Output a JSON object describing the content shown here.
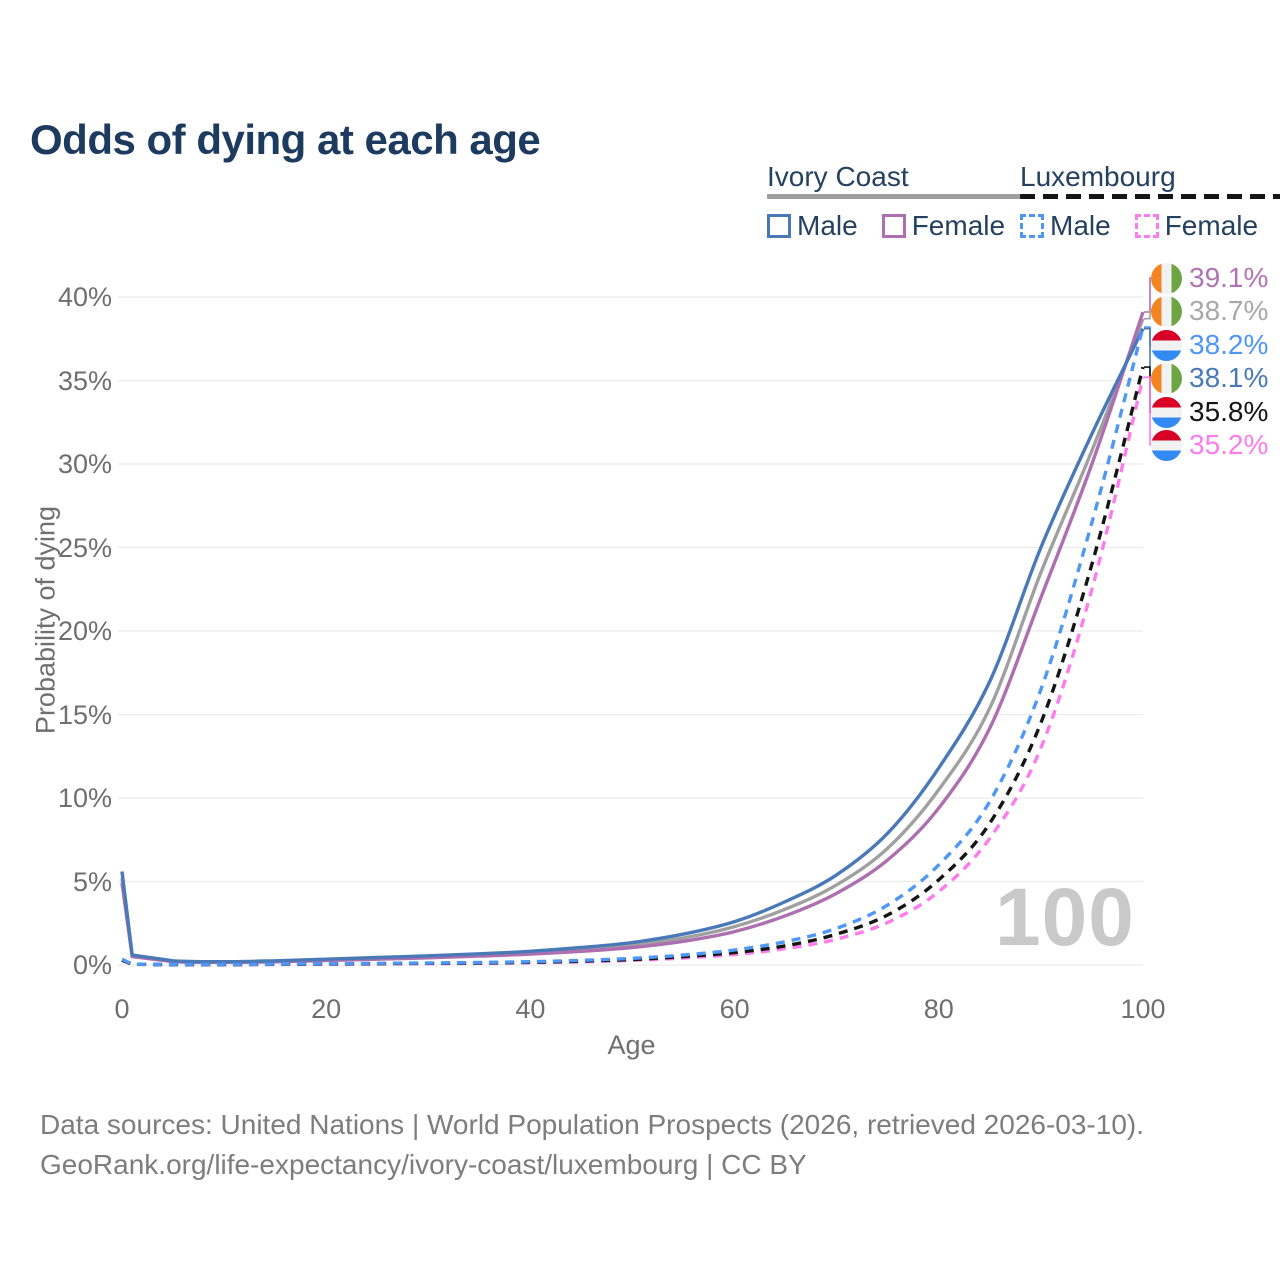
{
  "title": "Odds of dying at each age",
  "watermark": "100",
  "legend": {
    "groups": [
      {
        "label": "Ivory Coast",
        "underline_style": "solid",
        "underline_color": "#9e9e9e",
        "items": [
          {
            "label": "Male",
            "color": "#4a79b8",
            "dashed": false
          },
          {
            "label": "Female",
            "color": "#ad6fb0",
            "dashed": false
          }
        ]
      },
      {
        "label": "Luxembourg",
        "underline_style": "dashed",
        "underline_color": "#151515",
        "items": [
          {
            "label": "Male",
            "color": "#4e97f5",
            "dashed": true
          },
          {
            "label": "Female",
            "color": "#fd7ced",
            "dashed": true
          }
        ]
      }
    ]
  },
  "axes": {
    "y": {
      "title": "Probability of dying",
      "tick_values": [
        0,
        5,
        10,
        15,
        20,
        25,
        30,
        35,
        40
      ],
      "tick_labels": [
        "0%",
        "5%",
        "10%",
        "15%",
        "20%",
        "25%",
        "30%",
        "35%",
        "40%"
      ],
      "min": 0,
      "max": 40,
      "grid": true
    },
    "x": {
      "title": "Age",
      "tick_values": [
        0,
        20,
        40,
        60,
        80,
        100
      ],
      "tick_labels": [
        "0",
        "20",
        "40",
        "60",
        "80",
        "100"
      ],
      "min": 0,
      "max": 100
    }
  },
  "end_labels": [
    {
      "value": "39.1%",
      "flag": "ivory-coast",
      "color": "#b173b1",
      "series": "Ivory Coast Female"
    },
    {
      "value": "38.7%",
      "flag": "ivory-coast",
      "color": "#a8a8a8",
      "series": "Ivory Coast Both sexes"
    },
    {
      "value": "38.2%",
      "flag": "luxembourg",
      "color": "#4e97f5",
      "series": "Luxembourg Male"
    },
    {
      "value": "38.1%",
      "flag": "ivory-coast",
      "color": "#4a79b8",
      "series": "Ivory Coast Male"
    },
    {
      "value": "35.8%",
      "flag": "luxembourg",
      "color": "#151515",
      "series": "Luxembourg Both sexes"
    },
    {
      "value": "35.2%",
      "flag": "luxembourg",
      "color": "#fd7ced",
      "series": "Luxembourg Female"
    }
  ],
  "flag_colors": {
    "ivory-coast": {
      "orientation": "vertical",
      "stripes": [
        "#f28522",
        "#f2f2f2",
        "#6da544"
      ]
    },
    "luxembourg": {
      "orientation": "horizontal",
      "stripes": [
        "#d80027",
        "#f2f2f2",
        "#338af3"
      ]
    }
  },
  "footer": {
    "line1": "Data sources: United Nations | World Population Prospects (2026, retrieved 2026-03-10).",
    "line2": "GeoRank.org/life-expectancy/ivory-coast/luxembourg | CC BY"
  },
  "chart_data": {
    "type": "line",
    "title": "Odds of dying at each age",
    "xlabel": "Age",
    "ylabel": "Probability of dying",
    "xlim": [
      0,
      100
    ],
    "ylim": [
      0,
      40
    ],
    "grid": true,
    "legend_position": "top-right",
    "x": [
      0,
      1,
      5,
      10,
      15,
      20,
      25,
      30,
      35,
      40,
      45,
      50,
      55,
      60,
      65,
      70,
      75,
      80,
      85,
      90,
      95,
      100
    ],
    "series": [
      {
        "name": "Ivory Coast Male",
        "country": "Ivory Coast",
        "sex": "Male",
        "style": "solid",
        "color": "#4a79b8",
        "end_value_pct": 38.1,
        "values": [
          5.6,
          0.6,
          0.25,
          0.2,
          0.25,
          0.35,
          0.45,
          0.55,
          0.67,
          0.82,
          1.05,
          1.35,
          1.85,
          2.6,
          3.8,
          5.4,
          7.9,
          11.8,
          17.0,
          25.0,
          31.8,
          38.1
        ]
      },
      {
        "name": "Ivory Coast Both sexes",
        "country": "Ivory Coast",
        "sex": "Both",
        "style": "solid",
        "color": "#a0a0a0",
        "end_value_pct": 38.7,
        "values": [
          5.2,
          0.55,
          0.22,
          0.18,
          0.22,
          0.31,
          0.4,
          0.49,
          0.6,
          0.73,
          0.93,
          1.2,
          1.62,
          2.3,
          3.35,
          4.8,
          7.0,
          10.5,
          15.4,
          23.5,
          30.8,
          38.7
        ]
      },
      {
        "name": "Ivory Coast Female",
        "country": "Ivory Coast",
        "sex": "Female",
        "style": "solid",
        "color": "#ad6fb0",
        "end_value_pct": 39.1,
        "values": [
          4.9,
          0.5,
          0.2,
          0.16,
          0.19,
          0.27,
          0.35,
          0.43,
          0.53,
          0.65,
          0.82,
          1.05,
          1.42,
          2.0,
          2.95,
          4.3,
          6.3,
          9.4,
          14.2,
          22.0,
          30.0,
          39.1
        ]
      },
      {
        "name": "Luxembourg Male",
        "country": "Luxembourg",
        "sex": "Male",
        "style": "dashed",
        "color": "#4e97f5",
        "end_value_pct": 38.2,
        "values": [
          0.35,
          0.05,
          0.03,
          0.03,
          0.05,
          0.08,
          0.1,
          0.12,
          0.15,
          0.2,
          0.28,
          0.4,
          0.6,
          0.9,
          1.4,
          2.2,
          3.6,
          6.0,
          9.8,
          16.5,
          26.5,
          38.2
        ]
      },
      {
        "name": "Luxembourg Both sexes",
        "country": "Luxembourg",
        "sex": "Both",
        "style": "dashed",
        "color": "#151515",
        "end_value_pct": 35.8,
        "values": [
          0.3,
          0.04,
          0.02,
          0.02,
          0.04,
          0.06,
          0.08,
          0.1,
          0.12,
          0.16,
          0.23,
          0.33,
          0.5,
          0.75,
          1.15,
          1.85,
          3.0,
          5.1,
          8.5,
          14.5,
          24.0,
          35.8
        ]
      },
      {
        "name": "Luxembourg Female",
        "country": "Luxembourg",
        "sex": "Female",
        "style": "dashed",
        "color": "#fd7ced",
        "end_value_pct": 35.2,
        "values": [
          0.28,
          0.04,
          0.02,
          0.02,
          0.03,
          0.05,
          0.07,
          0.08,
          0.1,
          0.14,
          0.19,
          0.28,
          0.42,
          0.63,
          0.98,
          1.55,
          2.55,
          4.4,
          7.6,
          13.0,
          22.5,
          35.2
        ]
      }
    ]
  }
}
